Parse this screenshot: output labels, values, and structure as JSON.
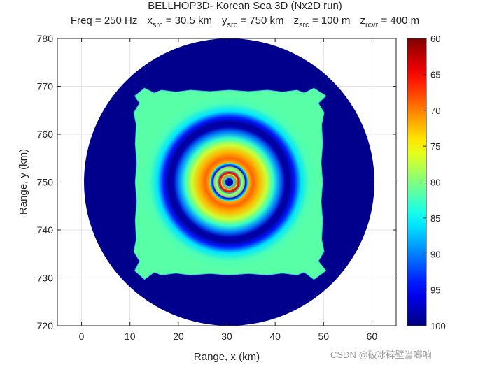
{
  "chart_data": {
    "type": "heatmap",
    "title": "BELLHOP3D- Korean Sea 3D (Nx2D run)",
    "subtitle": {
      "freq": "Freq = 250 Hz",
      "xsrc_sym": "x",
      "xsrc_sub": "src",
      "xsrc_val": "= 30.5 km",
      "ysrc_sym": "y",
      "ysrc_sub": "src",
      "ysrc_val": "= 750 km",
      "zsrc_sym": "z",
      "zsrc_sub": "src",
      "zsrc_val": "= 100 m",
      "zrcvr_sym": "z",
      "zrcvr_sub": "rcvr",
      "zrcvr_val": "= 400 m"
    },
    "xlabel": "Range, x (km)",
    "ylabel": "Range, y (km)",
    "xlim": [
      -5,
      65
    ],
    "ylim": [
      720,
      780
    ],
    "xticks": [
      0,
      10,
      20,
      30,
      40,
      50,
      60
    ],
    "yticks": [
      720,
      730,
      740,
      750,
      760,
      770,
      780
    ],
    "grid": true,
    "source": {
      "x": 30.5,
      "y": 750
    },
    "max_range_km": 30,
    "colorbar": {
      "colormap": "jet-reversed",
      "clim": [
        60,
        100
      ],
      "ticks": [
        60,
        65,
        70,
        75,
        80,
        85,
        90,
        95,
        100
      ],
      "label": ""
    }
  },
  "watermark": "CSDN @破冰碎壁当啷响"
}
